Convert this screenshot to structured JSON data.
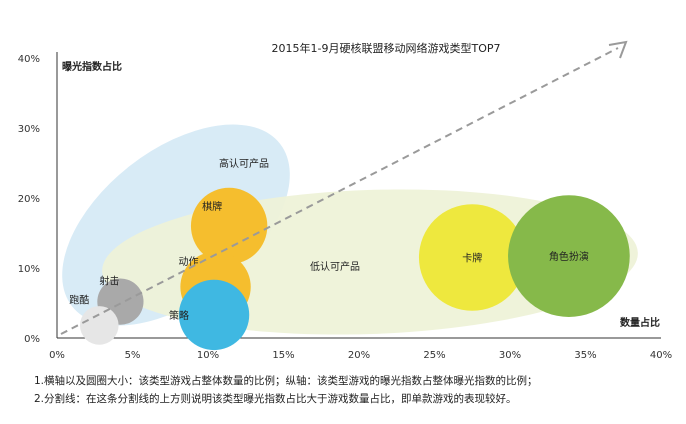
{
  "chart_data": {
    "type": "scatter",
    "title": "2015年1-9月硬核联盟移动网络游戏类型TOP7",
    "xlabel": "数量占比",
    "ylabel": "曝光指数占比",
    "xlim": [
      0,
      40
    ],
    "ylim": [
      0,
      40
    ],
    "xticks": [
      "0%",
      "5%",
      "10%",
      "15%",
      "20%",
      "25%",
      "30%",
      "35%",
      "40%"
    ],
    "yticks": [
      "0%",
      "10%",
      "20%",
      "30%",
      "40%"
    ],
    "points": [
      {
        "name": "跑酷",
        "x": 2.8,
        "y": 1.8,
        "size": 1.5,
        "color": "#e6e6e6"
      },
      {
        "name": "射击",
        "x": 4.2,
        "y": 5.2,
        "size": 2.0,
        "color": "#a9a9a9"
      },
      {
        "name": "策略",
        "x": 10.4,
        "y": 3.3,
        "size": 3.6,
        "color": "#3fb8e2"
      },
      {
        "name": "动作",
        "x": 10.5,
        "y": 7.3,
        "size": 3.6,
        "color": "#f5be2e"
      },
      {
        "name": "棋牌",
        "x": 11.4,
        "y": 16.0,
        "size": 4.0,
        "color": "#f5be2e"
      },
      {
        "name": "卡牌",
        "x": 27.5,
        "y": 11.5,
        "size": 6.0,
        "color": "#eee83e"
      },
      {
        "name": "角色扮演",
        "x": 33.9,
        "y": 11.7,
        "size": 7.0,
        "color": "#86b94a"
      }
    ],
    "regions": [
      {
        "label": "高认可产品",
        "color": "#d8ebf6"
      },
      {
        "label": "低认可产品",
        "color": "#eef2d8"
      }
    ],
    "trendline": "y = x"
  },
  "notes": [
    "1.横轴以及圆圈大小：该类型游戏占整体数量的比例；纵轴：该类型游戏的曝光指数占整体曝光指数的比例；",
    "2.分割线：在这条分割线的上方则说明该类型曝光指数占比大于游戏数量占比，即单款游戏的表现较好。"
  ]
}
